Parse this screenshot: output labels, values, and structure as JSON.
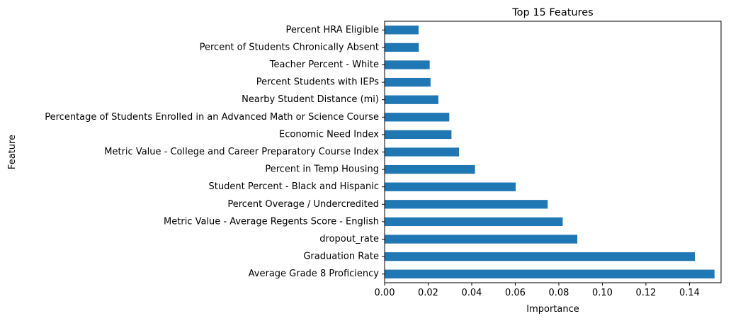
{
  "chart_data": {
    "type": "bar",
    "orientation": "horizontal",
    "title": "Top 15 Features",
    "xlabel": "Importance",
    "ylabel": "Feature",
    "xlim": [
      0,
      0.1545
    ],
    "xticks": [
      0.0,
      0.02,
      0.04,
      0.06,
      0.08,
      0.1,
      0.12,
      0.14
    ],
    "xtick_labels": [
      "0.00",
      "0.02",
      "0.04",
      "0.06",
      "0.08",
      "0.10",
      "0.12",
      "0.14"
    ],
    "grid": false,
    "bar_color": "#1f77b4",
    "categories": [
      "Average Grade 8 Proficiency",
      "Graduation Rate",
      "dropout_rate",
      "Metric Value - Average Regents Score - English",
      "Percent Overage / Undercredited",
      "Student Percent - Black and Hispanic",
      "Percent in Temp Housing",
      "Metric Value - College and Career Preparatory Course Index",
      "Economic Need Index",
      "Percentage of Students Enrolled in an Advanced Math or Science Course",
      "Nearby Student Distance (mi)",
      "Percent Students with IEPs",
      "Teacher Percent - White",
      "Percent of Students Chronically Absent",
      "Percent HRA Eligible"
    ],
    "values": [
      0.1515,
      0.1425,
      0.0885,
      0.0818,
      0.0749,
      0.0602,
      0.0415,
      0.0342,
      0.0307,
      0.0297,
      0.0247,
      0.0211,
      0.0207,
      0.0157,
      0.0156
    ]
  }
}
